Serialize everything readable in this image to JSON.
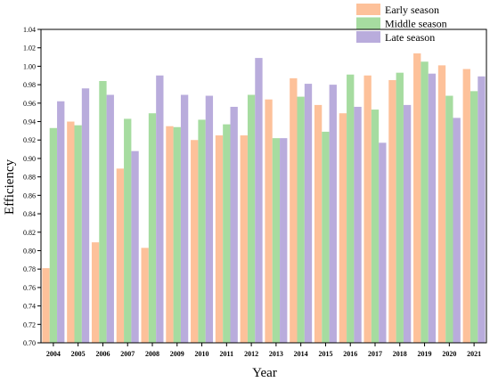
{
  "chart_data": {
    "type": "bar",
    "xlabel": "Year",
    "ylabel": "Efficiency",
    "ylim": [
      0.7,
      1.04
    ],
    "yticks": [
      "0.70",
      "0.72",
      "0.74",
      "0.76",
      "0.78",
      "0.80",
      "0.82",
      "0.84",
      "0.86",
      "0.88",
      "0.90",
      "0.92",
      "0.94",
      "0.96",
      "0.98",
      "1.00",
      "1.02",
      "1.04"
    ],
    "categories": [
      "2004",
      "2005",
      "2006",
      "2007",
      "2008",
      "2009",
      "2010",
      "2011",
      "2012",
      "2013",
      "2014",
      "2015",
      "2016",
      "2017",
      "2018",
      "2019",
      "2020",
      "2021"
    ],
    "legend_position": "top-right",
    "grid": false,
    "series": [
      {
        "name": "Early season",
        "color": "#FDC19A",
        "values": [
          0.781,
          0.94,
          0.809,
          0.889,
          0.803,
          0.935,
          0.92,
          0.925,
          0.925,
          0.964,
          0.987,
          0.958,
          0.949,
          0.99,
          0.985,
          1.014,
          1.001,
          0.997
        ]
      },
      {
        "name": "Middle season",
        "color": "#A6DCA0",
        "values": [
          0.933,
          0.936,
          0.984,
          0.943,
          0.949,
          0.934,
          0.942,
          0.937,
          0.969,
          0.922,
          0.967,
          0.929,
          0.991,
          0.953,
          0.993,
          1.005,
          0.968,
          0.973
        ]
      },
      {
        "name": "Late season",
        "color": "#B9ACDC",
        "values": [
          0.962,
          0.976,
          0.969,
          0.908,
          0.99,
          0.969,
          0.968,
          0.956,
          1.009,
          0.922,
          0.981,
          0.98,
          0.956,
          0.917,
          0.958,
          0.992,
          0.944,
          0.989
        ]
      }
    ]
  }
}
